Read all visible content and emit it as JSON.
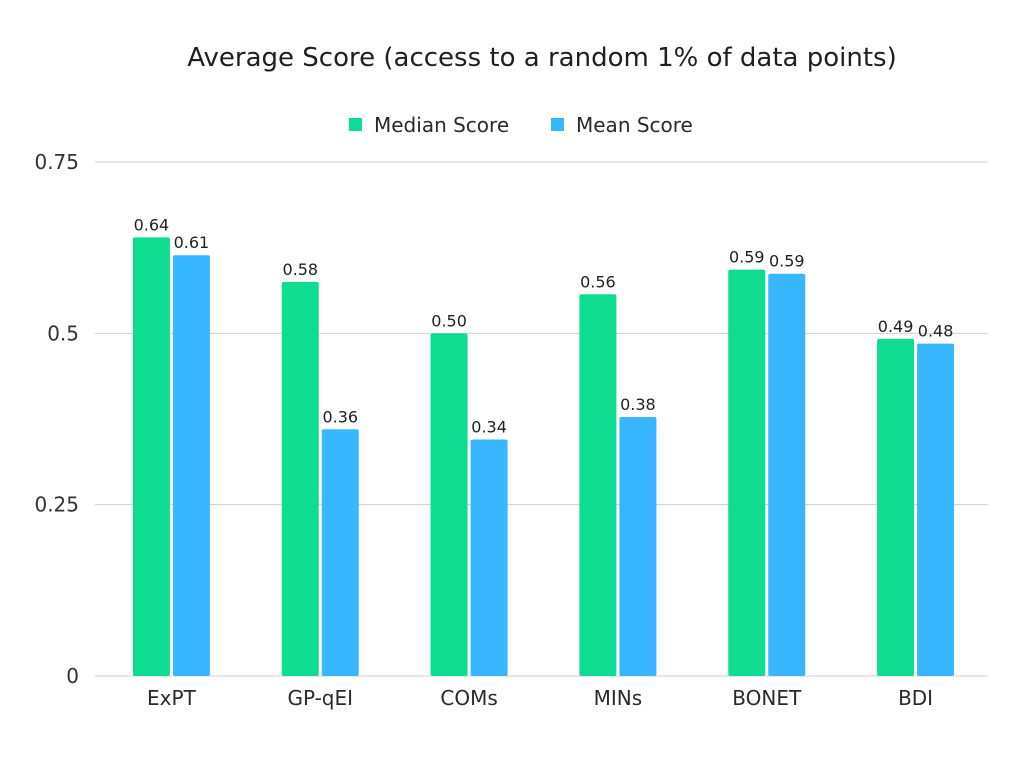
{
  "chart_data": {
    "type": "bar",
    "title": "Average Score (access to a random 1% of data points)",
    "xlabel": "",
    "ylabel": "",
    "ylim": [
      0,
      0.75
    ],
    "yticks": [
      0,
      0.25,
      0.5,
      0.75
    ],
    "ytick_labels": [
      "0",
      "0.25",
      "0.5",
      "0.75"
    ],
    "grid": true,
    "legend_position": "top-center",
    "categories": [
      "ExPT",
      "GP-qEI",
      "COMs",
      "MINs",
      "BONET",
      "BDI"
    ],
    "series": [
      {
        "name": "Median Score",
        "color": "#0fdc91",
        "values": [
          0.64,
          0.575,
          0.5,
          0.557,
          0.593,
          0.492
        ],
        "labels": [
          "0.64",
          "0.58",
          "0.50",
          "0.56",
          "0.59",
          "0.49"
        ]
      },
      {
        "name": "Mean Score",
        "color": "#38b6ff",
        "values": [
          0.614,
          0.36,
          0.345,
          0.378,
          0.587,
          0.485
        ],
        "labels": [
          "0.61",
          "0.36",
          "0.34",
          "0.38",
          "0.59",
          "0.48"
        ]
      }
    ]
  }
}
